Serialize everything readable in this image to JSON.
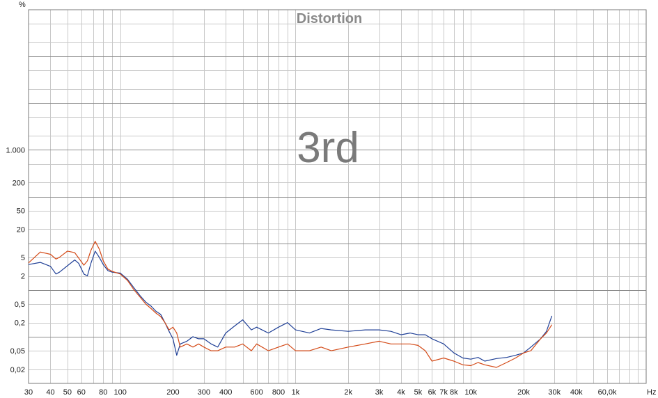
{
  "chart_data": {
    "type": "line",
    "title": "Distortion",
    "annotation": "3rd",
    "y_unit": "%",
    "x_unit": "Hz",
    "x_scale": "log",
    "y_scale": "log",
    "xlim": [
      30,
      100000
    ],
    "ylim": [
      0.01,
      1000000
    ],
    "grid": true,
    "x_ticks": [
      {
        "v": 30,
        "label": "30"
      },
      {
        "v": 40,
        "label": "40"
      },
      {
        "v": 50,
        "label": "50"
      },
      {
        "v": 60,
        "label": "60"
      },
      {
        "v": 80,
        "label": "80"
      },
      {
        "v": 100,
        "label": "100"
      },
      {
        "v": 200,
        "label": "200"
      },
      {
        "v": 300,
        "label": "300"
      },
      {
        "v": 400,
        "label": "400"
      },
      {
        "v": 600,
        "label": "600"
      },
      {
        "v": 800,
        "label": "800"
      },
      {
        "v": 1000,
        "label": "1k"
      },
      {
        "v": 2000,
        "label": "2k"
      },
      {
        "v": 3000,
        "label": "3k"
      },
      {
        "v": 4000,
        "label": "4k"
      },
      {
        "v": 5000,
        "label": "5k"
      },
      {
        "v": 6000,
        "label": "6k"
      },
      {
        "v": 7000,
        "label": "7k"
      },
      {
        "v": 8000,
        "label": "8k"
      },
      {
        "v": 10000,
        "label": "10k"
      },
      {
        "v": 20000,
        "label": "20k"
      },
      {
        "v": 30000,
        "label": "30k"
      },
      {
        "v": 40000,
        "label": "40k"
      },
      {
        "v": 60000,
        "label": "60,0k"
      }
    ],
    "y_ticks": [
      {
        "v": 0.02,
        "label": "0,02"
      },
      {
        "v": 0.05,
        "label": "0,05"
      },
      {
        "v": 0.2,
        "label": "0,2"
      },
      {
        "v": 0.5,
        "label": "0,5"
      },
      {
        "v": 2,
        "label": "2"
      },
      {
        "v": 5,
        "label": "5"
      },
      {
        "v": 20,
        "label": "20"
      },
      {
        "v": 50,
        "label": "50"
      },
      {
        "v": 200,
        "label": "200"
      },
      {
        "v": 1000,
        "label": "1.000"
      }
    ],
    "series": [
      {
        "color": "#1f3f96",
        "points": [
          [
            30,
            3.5
          ],
          [
            35,
            3.9
          ],
          [
            40,
            3.2
          ],
          [
            43,
            2.2
          ],
          [
            45,
            2.4
          ],
          [
            50,
            3.3
          ],
          [
            55,
            4.4
          ],
          [
            58,
            3.7
          ],
          [
            62,
            2.2
          ],
          [
            65,
            2.0
          ],
          [
            68,
            3.7
          ],
          [
            72,
            6.8
          ],
          [
            76,
            5.0
          ],
          [
            80,
            3.5
          ],
          [
            85,
            2.6
          ],
          [
            90,
            2.4
          ],
          [
            100,
            2.3
          ],
          [
            110,
            1.7
          ],
          [
            120,
            1.1
          ],
          [
            130,
            0.75
          ],
          [
            140,
            0.55
          ],
          [
            150,
            0.45
          ],
          [
            160,
            0.35
          ],
          [
            170,
            0.3
          ],
          [
            180,
            0.2
          ],
          [
            190,
            0.13
          ],
          [
            200,
            0.09
          ],
          [
            210,
            0.04
          ],
          [
            220,
            0.07
          ],
          [
            240,
            0.08
          ],
          [
            260,
            0.1
          ],
          [
            280,
            0.09
          ],
          [
            300,
            0.09
          ],
          [
            330,
            0.07
          ],
          [
            360,
            0.06
          ],
          [
            400,
            0.12
          ],
          [
            450,
            0.17
          ],
          [
            500,
            0.23
          ],
          [
            560,
            0.14
          ],
          [
            600,
            0.16
          ],
          [
            700,
            0.12
          ],
          [
            800,
            0.16
          ],
          [
            900,
            0.2
          ],
          [
            1000,
            0.14
          ],
          [
            1200,
            0.12
          ],
          [
            1400,
            0.15
          ],
          [
            1600,
            0.14
          ],
          [
            2000,
            0.13
          ],
          [
            2500,
            0.14
          ],
          [
            3000,
            0.14
          ],
          [
            3500,
            0.13
          ],
          [
            4000,
            0.11
          ],
          [
            4500,
            0.12
          ],
          [
            5000,
            0.11
          ],
          [
            5500,
            0.11
          ],
          [
            6000,
            0.09
          ],
          [
            7000,
            0.07
          ],
          [
            8000,
            0.045
          ],
          [
            9000,
            0.035
          ],
          [
            10000,
            0.033
          ],
          [
            11000,
            0.036
          ],
          [
            12000,
            0.03
          ],
          [
            14000,
            0.034
          ],
          [
            16000,
            0.036
          ],
          [
            18000,
            0.04
          ],
          [
            20000,
            0.045
          ],
          [
            22000,
            0.06
          ],
          [
            25000,
            0.09
          ],
          [
            27000,
            0.13
          ],
          [
            29000,
            0.28
          ]
        ]
      },
      {
        "color": "#d44a17",
        "points": [
          [
            30,
            3.8
          ],
          [
            35,
            6.5
          ],
          [
            40,
            5.8
          ],
          [
            43,
            4.6
          ],
          [
            45,
            5.0
          ],
          [
            50,
            6.8
          ],
          [
            55,
            6.3
          ],
          [
            58,
            4.8
          ],
          [
            62,
            3.4
          ],
          [
            65,
            4.2
          ],
          [
            68,
            7.0
          ],
          [
            72,
            11.0
          ],
          [
            76,
            7.5
          ],
          [
            80,
            4.2
          ],
          [
            85,
            2.8
          ],
          [
            90,
            2.5
          ],
          [
            100,
            2.2
          ],
          [
            110,
            1.6
          ],
          [
            120,
            1.0
          ],
          [
            130,
            0.7
          ],
          [
            140,
            0.5
          ],
          [
            150,
            0.4
          ],
          [
            160,
            0.32
          ],
          [
            170,
            0.27
          ],
          [
            180,
            0.2
          ],
          [
            190,
            0.14
          ],
          [
            200,
            0.16
          ],
          [
            210,
            0.12
          ],
          [
            220,
            0.06
          ],
          [
            240,
            0.07
          ],
          [
            260,
            0.06
          ],
          [
            280,
            0.07
          ],
          [
            300,
            0.06
          ],
          [
            330,
            0.05
          ],
          [
            360,
            0.05
          ],
          [
            400,
            0.06
          ],
          [
            450,
            0.06
          ],
          [
            500,
            0.07
          ],
          [
            560,
            0.05
          ],
          [
            600,
            0.07
          ],
          [
            700,
            0.05
          ],
          [
            800,
            0.06
          ],
          [
            900,
            0.07
          ],
          [
            1000,
            0.05
          ],
          [
            1200,
            0.05
          ],
          [
            1400,
            0.06
          ],
          [
            1600,
            0.05
          ],
          [
            2000,
            0.06
          ],
          [
            2500,
            0.07
          ],
          [
            3000,
            0.08
          ],
          [
            3500,
            0.07
          ],
          [
            4000,
            0.07
          ],
          [
            4500,
            0.07
          ],
          [
            5000,
            0.065
          ],
          [
            5500,
            0.05
          ],
          [
            6000,
            0.03
          ],
          [
            7000,
            0.035
          ],
          [
            8000,
            0.03
          ],
          [
            9000,
            0.025
          ],
          [
            10000,
            0.024
          ],
          [
            11000,
            0.028
          ],
          [
            12000,
            0.025
          ],
          [
            14000,
            0.022
          ],
          [
            16000,
            0.028
          ],
          [
            18000,
            0.035
          ],
          [
            20000,
            0.045
          ],
          [
            22000,
            0.05
          ],
          [
            25000,
            0.09
          ],
          [
            27000,
            0.12
          ],
          [
            29000,
            0.18
          ]
        ]
      }
    ]
  }
}
